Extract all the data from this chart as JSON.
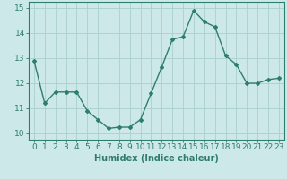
{
  "x": [
    0,
    1,
    2,
    3,
    4,
    5,
    6,
    7,
    8,
    9,
    10,
    11,
    12,
    13,
    14,
    15,
    16,
    17,
    18,
    19,
    20,
    21,
    22,
    23
  ],
  "y": [
    12.9,
    11.2,
    11.65,
    11.65,
    11.65,
    10.9,
    10.55,
    10.2,
    10.25,
    10.25,
    10.55,
    11.6,
    12.65,
    13.75,
    13.85,
    14.9,
    14.45,
    14.25,
    13.1,
    12.75,
    12.0,
    12.0,
    12.15,
    12.2
  ],
  "line_color": "#2e7d6e",
  "marker": "D",
  "marker_size": 2,
  "bg_color": "#cce8e8",
  "grid_color": "#aad0cc",
  "xlabel": "Humidex (Indice chaleur)",
  "ylabel": "",
  "xlim": [
    -0.5,
    23.5
  ],
  "ylim": [
    9.75,
    15.25
  ],
  "yticks": [
    10,
    11,
    12,
    13,
    14,
    15
  ],
  "xticks": [
    0,
    1,
    2,
    3,
    4,
    5,
    6,
    7,
    8,
    9,
    10,
    11,
    12,
    13,
    14,
    15,
    16,
    17,
    18,
    19,
    20,
    21,
    22,
    23
  ],
  "xlabel_fontsize": 7,
  "tick_fontsize": 6.5,
  "line_width": 1.0
}
